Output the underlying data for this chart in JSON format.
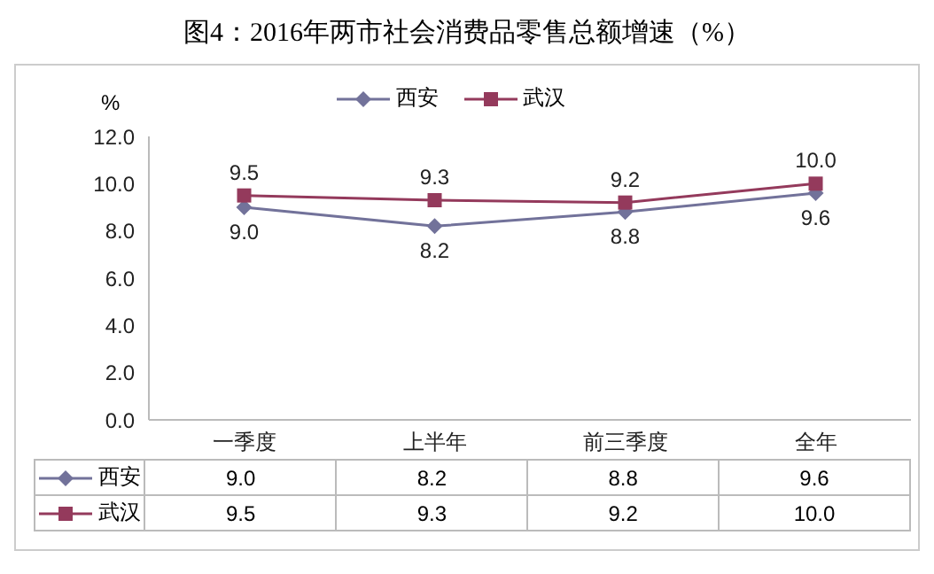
{
  "chart_data": {
    "type": "line",
    "title": "图4：2016年两市社会消费品零售总额增速（%）",
    "ylabel": "%",
    "categories": [
      "一季度",
      "上半年",
      "前三季度",
      "全年"
    ],
    "series": [
      {
        "name": "西安",
        "color": "#72729a",
        "values": [
          9.0,
          8.2,
          8.8,
          9.6
        ],
        "marker": "diamond",
        "value_labels": [
          "9.0",
          "8.2",
          "8.8",
          "9.6"
        ]
      },
      {
        "name": "武汉",
        "color": "#943a5c",
        "values": [
          9.5,
          9.3,
          9.2,
          10.0
        ],
        "marker": "square",
        "value_labels": [
          "9.5",
          "9.3",
          "9.2",
          "10.0"
        ]
      }
    ],
    "ylim": [
      0,
      12
    ],
    "yticks": [
      {
        "value": 0,
        "label": "0.0"
      },
      {
        "value": 2,
        "label": "2.0"
      },
      {
        "value": 4,
        "label": "4.0"
      },
      {
        "value": 6,
        "label": "6.0"
      },
      {
        "value": 8,
        "label": "8.0"
      },
      {
        "value": 10,
        "label": "10.0"
      },
      {
        "value": 12,
        "label": "12.0"
      }
    ],
    "legend": "top",
    "line_style": "solid"
  }
}
